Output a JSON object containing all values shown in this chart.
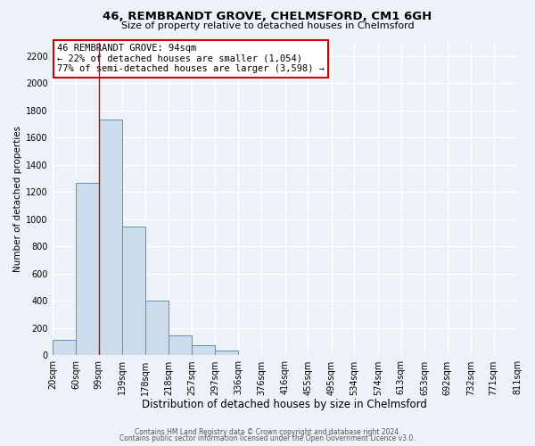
{
  "title": "46, REMBRANDT GROVE, CHELMSFORD, CM1 6GH",
  "subtitle": "Size of property relative to detached houses in Chelmsford",
  "xlabel": "Distribution of detached houses by size in Chelmsford",
  "ylabel": "Number of detached properties",
  "footer_line1": "Contains HM Land Registry data © Crown copyright and database right 2024.",
  "footer_line2": "Contains public sector information licensed under the Open Government Licence v3.0.",
  "bin_labels": [
    "20sqm",
    "60sqm",
    "99sqm",
    "139sqm",
    "178sqm",
    "218sqm",
    "257sqm",
    "297sqm",
    "336sqm",
    "376sqm",
    "416sqm",
    "455sqm",
    "495sqm",
    "534sqm",
    "574sqm",
    "613sqm",
    "653sqm",
    "692sqm",
    "732sqm",
    "771sqm",
    "811sqm"
  ],
  "bar_values": [
    115,
    1265,
    1730,
    950,
    405,
    150,
    78,
    35,
    0,
    0,
    0,
    0,
    0,
    0,
    0,
    0,
    0,
    0,
    0,
    0
  ],
  "bar_color": "#ccdcec",
  "bar_edge_color": "#6090b8",
  "vline_x_index": 2,
  "vline_color": "#cc0000",
  "annotation_line1": "46 REMBRANDT GROVE: 94sqm",
  "annotation_line2": "← 22% of detached houses are smaller (1,054)",
  "annotation_line3": "77% of semi-detached houses are larger (3,598) →",
  "annotation_box_edge_color": "#cc0000",
  "annotation_box_facecolor": "#ffffff",
  "ylim": [
    0,
    2300
  ],
  "yticks": [
    0,
    200,
    400,
    600,
    800,
    1000,
    1200,
    1400,
    1600,
    1800,
    2000,
    2200
  ],
  "bg_color": "#edf2f9",
  "grid_color": "#ffffff",
  "bin_edges_values": [
    20,
    60,
    99,
    139,
    178,
    218,
    257,
    297,
    336,
    376,
    416,
    455,
    495,
    534,
    574,
    613,
    653,
    692,
    732,
    771,
    811
  ],
  "title_fontsize": 9.5,
  "subtitle_fontsize": 8.0,
  "xlabel_fontsize": 8.5,
  "ylabel_fontsize": 7.5,
  "tick_fontsize": 7.0,
  "footer_fontsize": 5.5
}
